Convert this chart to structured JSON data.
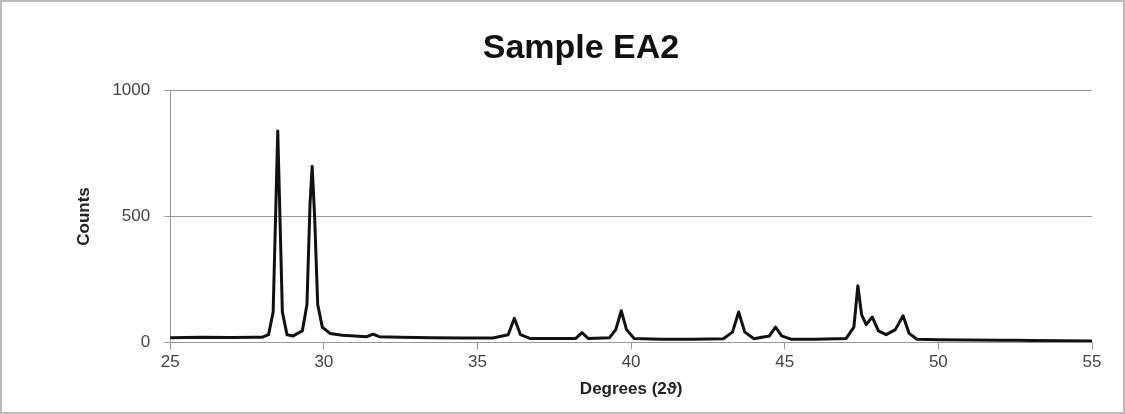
{
  "chart_data": {
    "type": "line",
    "title": "Sample EA2",
    "xlabel": "Degrees (2ϑ)",
    "ylabel": "Counts",
    "xlim": [
      25,
      55
    ],
    "xticks": [
      25,
      30,
      35,
      40,
      45,
      50,
      55
    ],
    "ylim": [
      0,
      1000
    ],
    "yticks": [
      0,
      500,
      1000
    ],
    "grid": "y",
    "legend": false,
    "marker": "none",
    "line_style": "solid",
    "series": [
      {
        "color": "#111111",
        "x": [
          25,
          26,
          27,
          28,
          28.2,
          28.35,
          28.45,
          28.5,
          28.55,
          28.65,
          28.8,
          29.0,
          29.3,
          29.45,
          29.55,
          29.62,
          29.7,
          29.8,
          29.95,
          30.2,
          30.6,
          31.0,
          31.4,
          31.6,
          31.8,
          32.5,
          33.5,
          34.5,
          35.5,
          36.0,
          36.2,
          36.4,
          36.7,
          37.5,
          38.2,
          38.4,
          38.6,
          39.3,
          39.5,
          39.68,
          39.85,
          40.1,
          41,
          42,
          43,
          43.3,
          43.5,
          43.7,
          44,
          44.5,
          44.7,
          44.9,
          45.2,
          46,
          47.0,
          47.25,
          47.38,
          47.5,
          47.65,
          47.85,
          48.05,
          48.3,
          48.6,
          48.85,
          49.05,
          49.3,
          50,
          51,
          52,
          53,
          54,
          55
        ],
        "values": [
          18,
          20,
          19,
          20,
          30,
          120,
          600,
          840,
          600,
          120,
          30,
          25,
          45,
          150,
          550,
          700,
          500,
          150,
          60,
          35,
          28,
          25,
          22,
          32,
          22,
          20,
          18,
          17,
          17,
          30,
          95,
          30,
          15,
          15,
          15,
          38,
          15,
          18,
          50,
          125,
          50,
          15,
          12,
          12,
          14,
          40,
          120,
          40,
          14,
          25,
          60,
          25,
          12,
          12,
          15,
          60,
          225,
          110,
          70,
          100,
          45,
          30,
          50,
          105,
          35,
          12,
          10,
          9,
          8,
          7,
          6,
          5
        ]
      }
    ]
  }
}
